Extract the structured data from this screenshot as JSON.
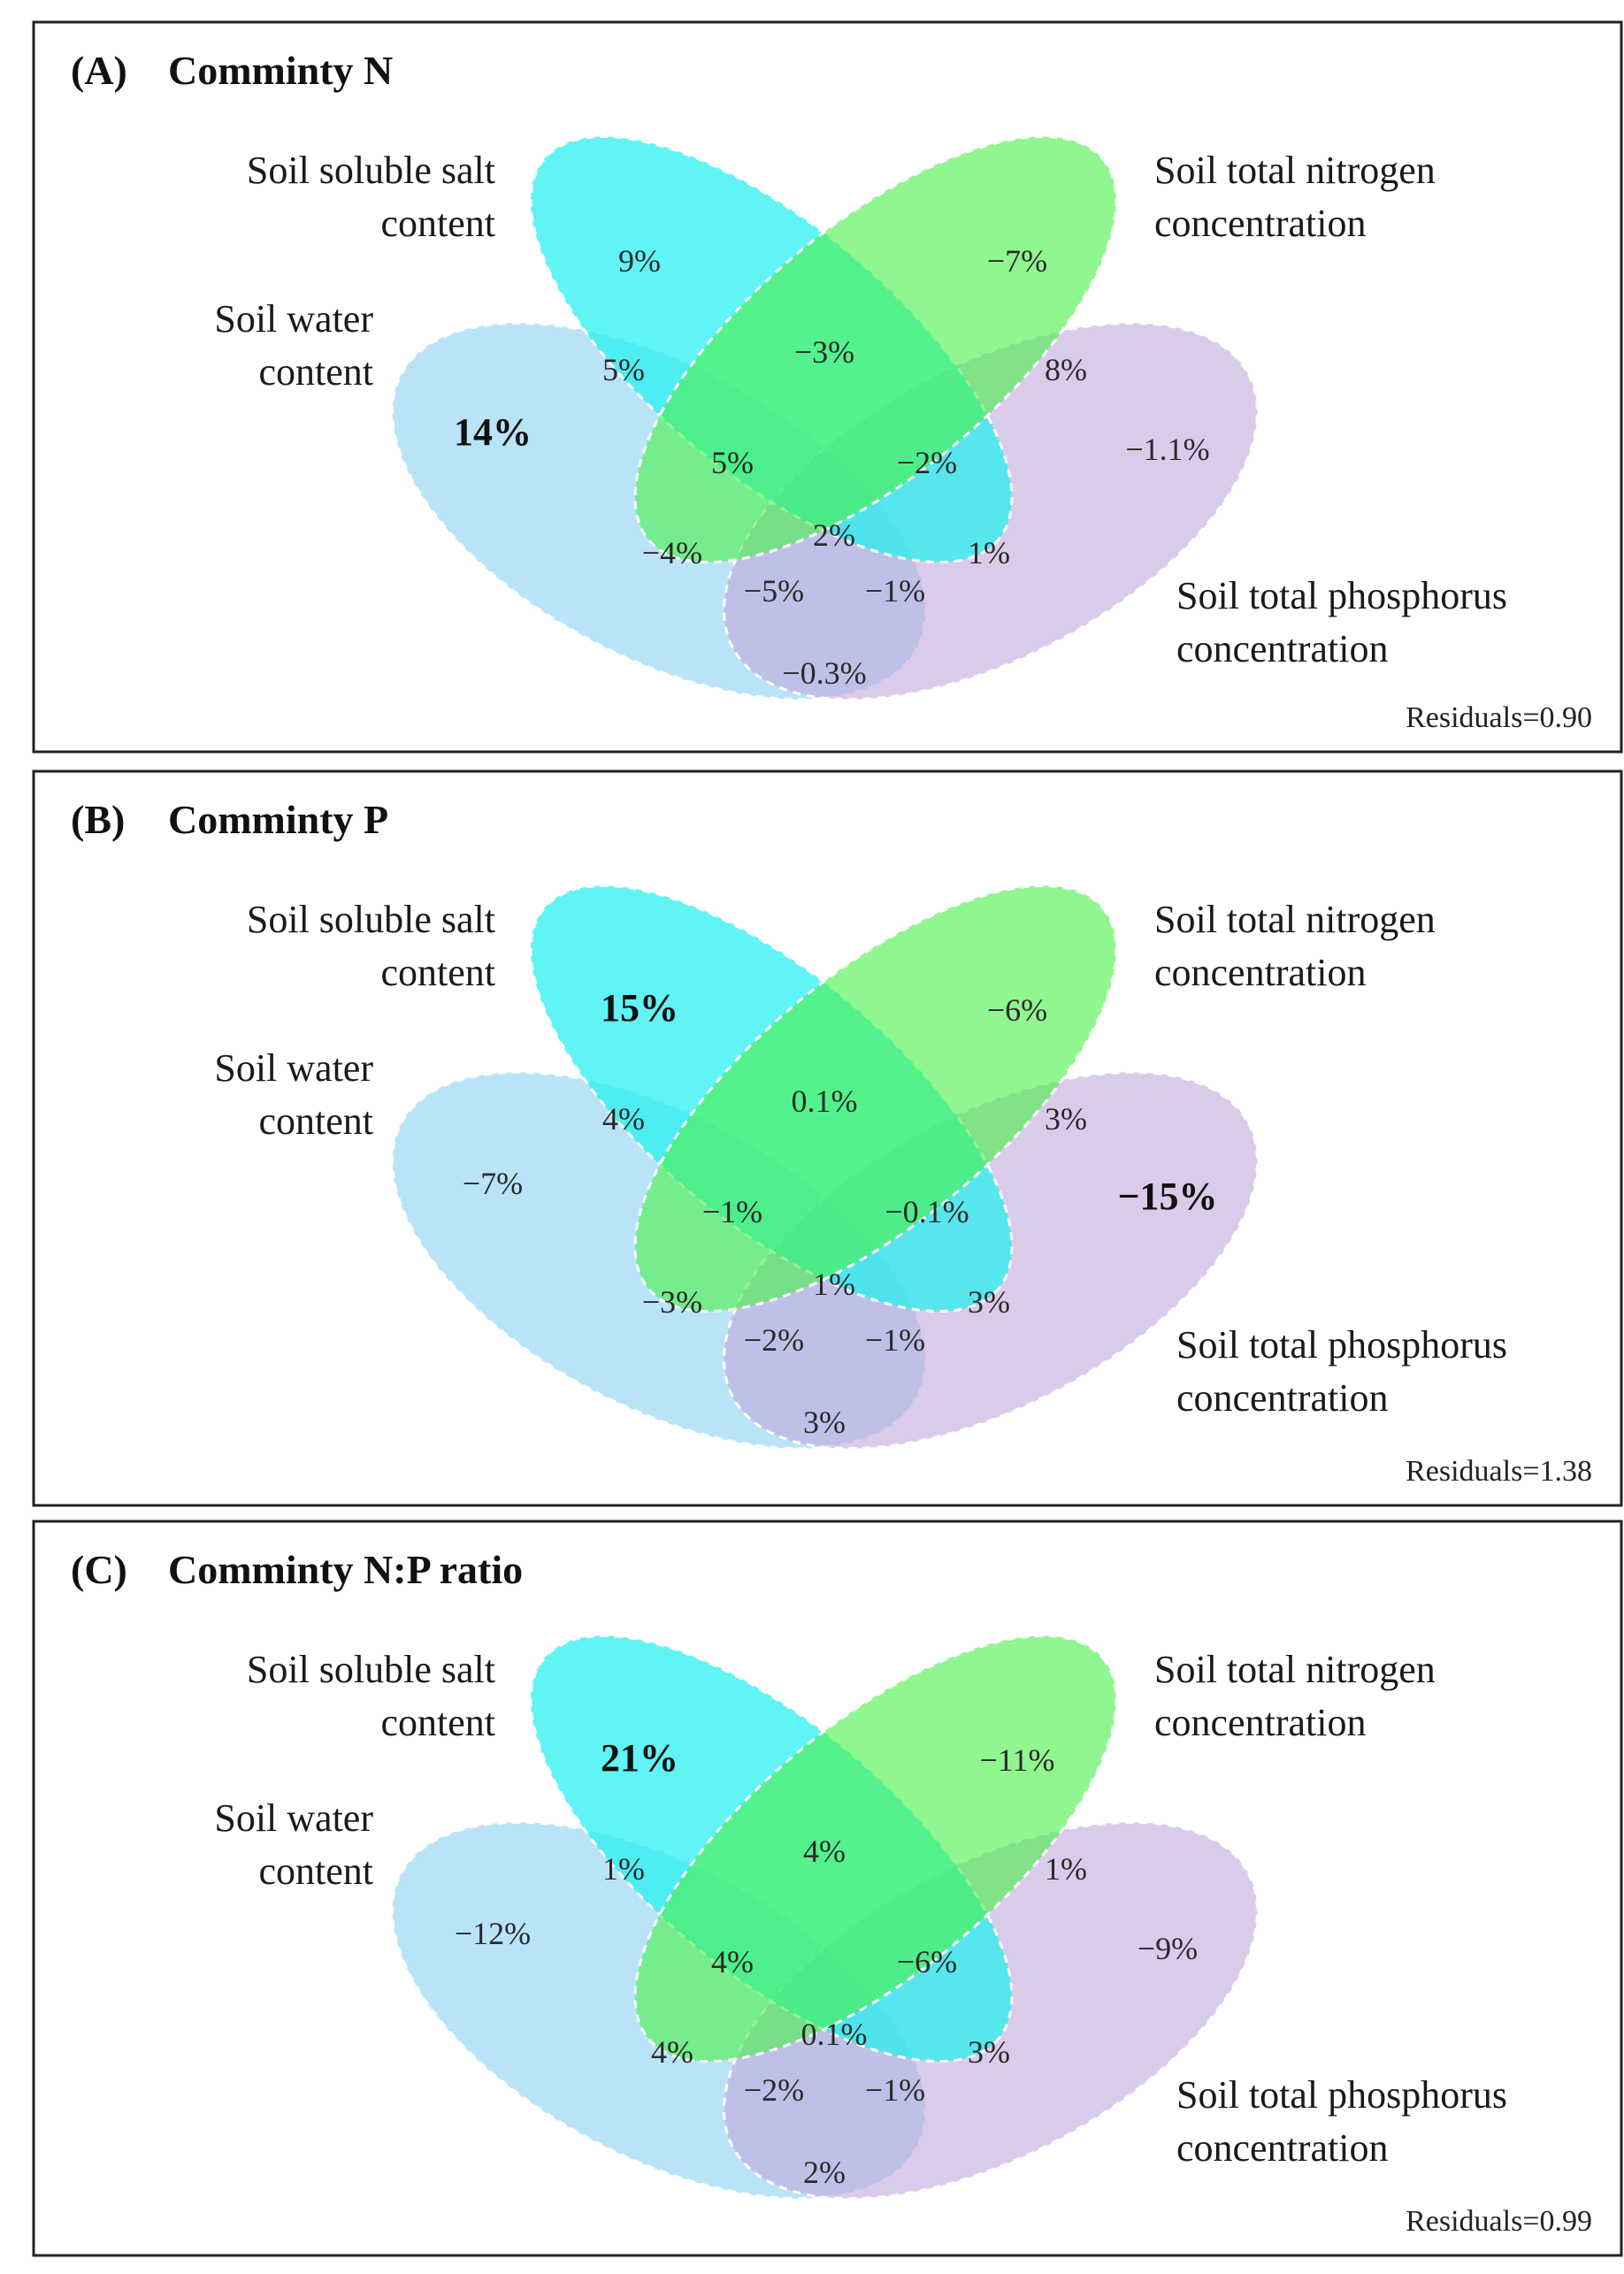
{
  "figure": {
    "colors": {
      "water": "#7fcdf0",
      "salt": "#22f0f0",
      "nitrogen": "#4cf04c",
      "phosphorus": "#c3a8dc",
      "ellipse_stroke": "#ffffff",
      "frame": "#222222"
    },
    "factor_labels": {
      "salt": [
        "Soil soluble salt",
        "content"
      ],
      "nitrogen": [
        "Soil total nitrogen",
        "concentration"
      ],
      "water": [
        "Soil water",
        "content"
      ],
      "phosphorus": [
        "Soil total phosphorus",
        "concentration"
      ]
    },
    "panels": [
      {
        "letter": "(A)",
        "title": "Comminty N",
        "residuals": "Residuals=0.90",
        "regions": {
          "salt_only": "9%",
          "nitrogen_only": "−7%",
          "water_only": "14%",
          "phosphorus_only": "−1.1%",
          "salt_nitrogen": "−3%",
          "water_salt": "5%",
          "nitrogen_phosphorus": "8%",
          "water_salt_nitrogen": "5%",
          "salt_nitrogen_phosphorus": "−2%",
          "water_nitrogen": "−4%",
          "salt_phosphorus": "1%",
          "all_four": "2%",
          "water_nitrogen_phosphorus": "−5%",
          "water_salt_phosphorus": "−1%",
          "water_phosphorus": "−0.3%"
        },
        "bold_region": "water_only"
      },
      {
        "letter": "(B)",
        "title": "Comminty P",
        "residuals": "Residuals=1.38",
        "regions": {
          "salt_only": "15%",
          "nitrogen_only": "−6%",
          "water_only": "−7%",
          "phosphorus_only": "−15%",
          "salt_nitrogen": "0.1%",
          "water_salt": "4%",
          "nitrogen_phosphorus": "3%",
          "water_salt_nitrogen": "−1%",
          "salt_nitrogen_phosphorus": "−0.1%",
          "water_nitrogen": "−3%",
          "salt_phosphorus": "3%",
          "all_four": "1%",
          "water_nitrogen_phosphorus": "−2%",
          "water_salt_phosphorus": "−1%",
          "water_phosphorus": "3%"
        },
        "bold_region": "salt_only,phosphorus_only"
      },
      {
        "letter": "(C)",
        "title": "Comminty N:P ratio",
        "residuals": "Residuals=0.99",
        "regions": {
          "salt_only": "21%",
          "nitrogen_only": "−11%",
          "water_only": "−12%",
          "phosphorus_only": "−9%",
          "salt_nitrogen": "4%",
          "water_salt": "1%",
          "nitrogen_phosphorus": "1%",
          "water_salt_nitrogen": "4%",
          "salt_nitrogen_phosphorus": "−6%",
          "water_nitrogen": "4%",
          "salt_phosphorus": "3%",
          "all_four": "0.1%",
          "water_nitrogen_phosphorus": "−2%",
          "water_salt_phosphorus": "−1%",
          "water_phosphorus": "2%"
        },
        "bold_region": "salt_only"
      }
    ]
  }
}
